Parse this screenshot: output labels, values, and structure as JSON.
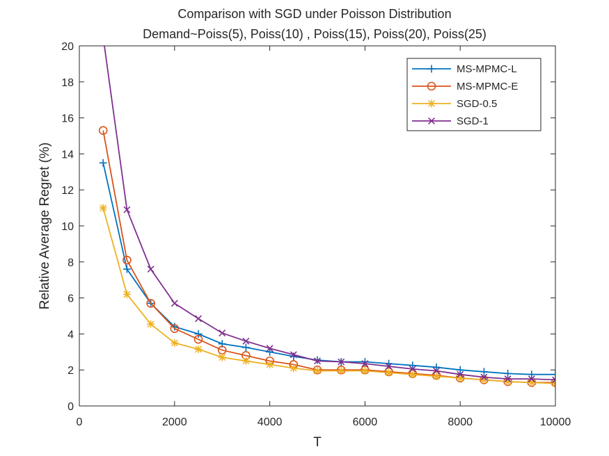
{
  "chart_data": {
    "type": "line",
    "title": "Comparison with SGD under Poisson Distribution",
    "subtitle": "Demand~Poiss(5), Poiss(10) , Poiss(15), Poiss(20), Poiss(25)",
    "xlabel": "T",
    "ylabel": "Relative Average Regret (%)",
    "xlim": [
      0,
      10000
    ],
    "ylim": [
      0,
      20
    ],
    "xticks": [
      0,
      2000,
      4000,
      6000,
      8000,
      10000
    ],
    "yticks": [
      0,
      2,
      4,
      6,
      8,
      10,
      12,
      14,
      16,
      18,
      20
    ],
    "grid": false,
    "legend_position": "top-right",
    "x": [
      500,
      1000,
      1500,
      2000,
      2500,
      3000,
      3500,
      4000,
      4500,
      5000,
      5500,
      6000,
      6500,
      7000,
      7500,
      8000,
      8500,
      9000,
      9500,
      10000
    ],
    "series": [
      {
        "name": "MS-MPMC-L",
        "color": "#0072BD",
        "marker": "plus",
        "values": [
          13.5,
          7.6,
          5.7,
          4.4,
          4.0,
          3.45,
          3.25,
          3.0,
          2.75,
          2.55,
          2.45,
          2.45,
          2.35,
          2.25,
          2.15,
          2.0,
          1.9,
          1.8,
          1.75,
          1.75
        ]
      },
      {
        "name": "MS-MPMC-E",
        "color": "#D95319",
        "marker": "circle",
        "values": [
          15.3,
          8.1,
          5.7,
          4.3,
          3.7,
          3.1,
          2.8,
          2.5,
          2.3,
          2.0,
          2.0,
          2.0,
          1.9,
          1.8,
          1.7,
          1.55,
          1.45,
          1.35,
          1.3,
          1.3
        ]
      },
      {
        "name": "SGD-0.5",
        "color": "#EDB120",
        "marker": "asterisk",
        "values": [
          11.0,
          6.2,
          4.55,
          3.5,
          3.15,
          2.7,
          2.5,
          2.3,
          2.1,
          1.95,
          1.95,
          1.95,
          1.85,
          1.75,
          1.65,
          1.55,
          1.45,
          1.35,
          1.3,
          1.25
        ]
      },
      {
        "name": "SGD-1",
        "color": "#7E2F8E",
        "marker": "x",
        "values": [
          20.5,
          10.9,
          7.6,
          5.7,
          4.85,
          4.05,
          3.6,
          3.2,
          2.85,
          2.5,
          2.45,
          2.35,
          2.2,
          2.05,
          1.95,
          1.75,
          1.6,
          1.5,
          1.5,
          1.45
        ]
      }
    ]
  }
}
